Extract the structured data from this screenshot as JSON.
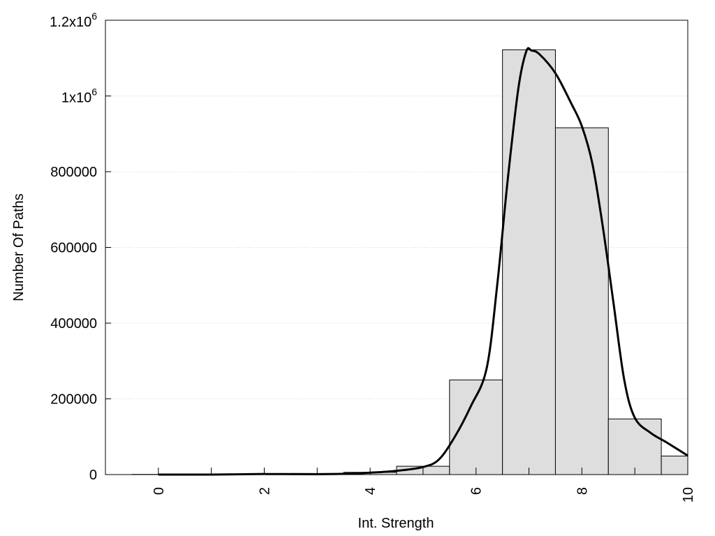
{
  "chart_data": {
    "type": "bar",
    "xlabel": "Int. Strength",
    "ylabel": "Number Of Paths",
    "xlim": [
      -1,
      10
    ],
    "ylim": [
      0,
      1200000
    ],
    "x_ticks": [
      {
        "value": 0,
        "label": "0"
      },
      {
        "value": 2,
        "label": "2"
      },
      {
        "value": 4,
        "label": "4"
      },
      {
        "value": 6,
        "label": "6"
      },
      {
        "value": 8,
        "label": "8"
      },
      {
        "value": 10,
        "label": "10"
      }
    ],
    "y_ticks": [
      {
        "value": 0,
        "label": "0"
      },
      {
        "value": 200000,
        "label": "200000"
      },
      {
        "value": 400000,
        "label": "400000"
      },
      {
        "value": 600000,
        "label": "600000"
      },
      {
        "value": 800000,
        "label": "800000"
      },
      {
        "value": 1000000,
        "base": "1x10",
        "exp": "6"
      },
      {
        "value": 1200000,
        "base": "1.2x10",
        "exp": "6"
      }
    ],
    "bin_width": 1,
    "bars": [
      {
        "x": 0,
        "value": 500
      },
      {
        "x": 1,
        "value": 600
      },
      {
        "x": 2,
        "value": 1200
      },
      {
        "x": 3,
        "value": 3000
      },
      {
        "x": 4,
        "value": 6000
      },
      {
        "x": 5,
        "value": 22000
      },
      {
        "x": 6,
        "value": 250000
      },
      {
        "x": 7,
        "value": 1122000
      },
      {
        "x": 8,
        "value": 916000
      },
      {
        "x": 9,
        "value": 147000
      },
      {
        "x": 10,
        "value": 49000
      }
    ],
    "curve": [
      [
        0,
        0
      ],
      [
        1,
        0
      ],
      [
        2,
        1500
      ],
      [
        3,
        1000
      ],
      [
        3.5,
        2000
      ],
      [
        4,
        5000
      ],
      [
        4.5,
        10000
      ],
      [
        5,
        20000
      ],
      [
        5.3,
        40000
      ],
      [
        5.6,
        100000
      ],
      [
        5.9,
        180000
      ],
      [
        6.2,
        280000
      ],
      [
        6.4,
        500000
      ],
      [
        6.6,
        780000
      ],
      [
        6.8,
        1020000
      ],
      [
        6.95,
        1118000
      ],
      [
        7.05,
        1120000
      ],
      [
        7.2,
        1110000
      ],
      [
        7.5,
        1060000
      ],
      [
        7.8,
        980000
      ],
      [
        8.0,
        920000
      ],
      [
        8.2,
        820000
      ],
      [
        8.4,
        650000
      ],
      [
        8.6,
        450000
      ],
      [
        8.8,
        250000
      ],
      [
        9.0,
        150000
      ],
      [
        9.3,
        110000
      ],
      [
        9.6,
        85000
      ],
      [
        10,
        50000
      ]
    ],
    "grid": true,
    "bar_fill": "#dedede",
    "bar_stroke": "#000000",
    "curve_color": "#000000",
    "grid_color": "#cccccc"
  }
}
